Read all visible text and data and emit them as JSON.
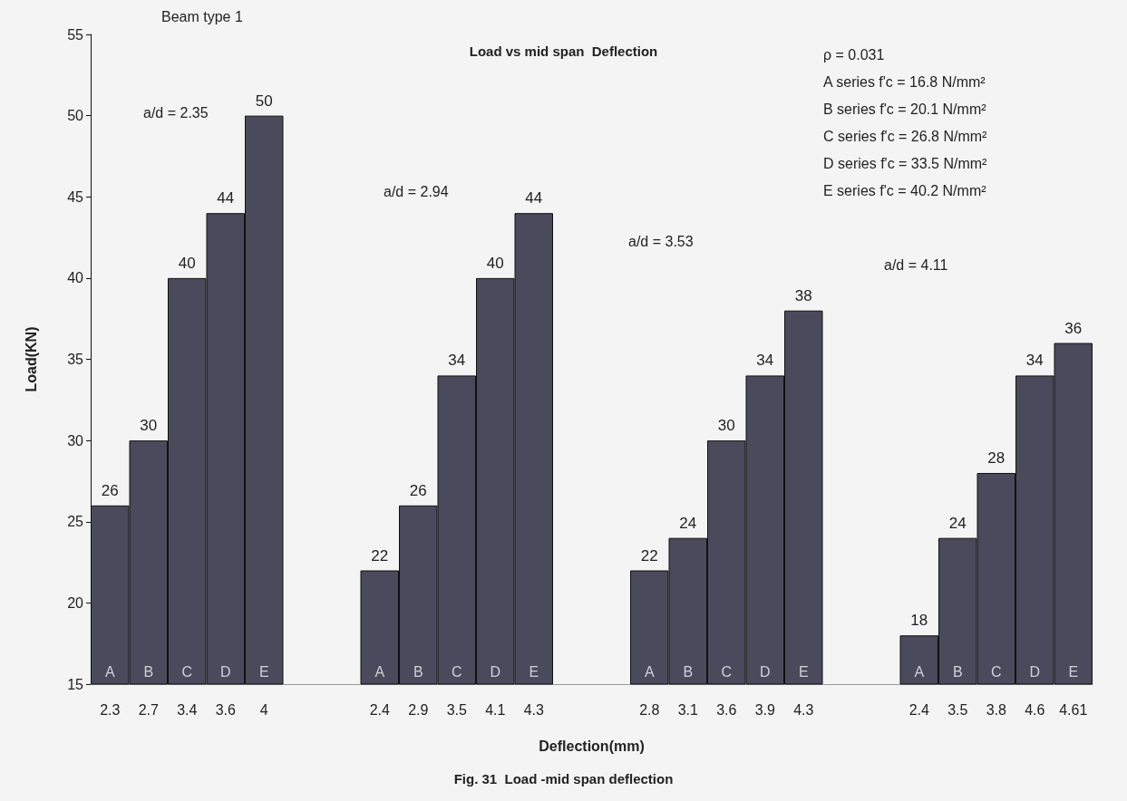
{
  "chart_data": {
    "type": "bar",
    "title": "Load vs mid span  Deflection",
    "xlabel": "Deflection(mm)",
    "ylabel": "Load(KN)",
    "categories": [
      "2.3",
      "2.7",
      "3.4",
      "3.6",
      "4",
      null,
      null,
      "2.4",
      "2.9",
      "3.5",
      "4.1",
      "4.3",
      null,
      null,
      "2.8",
      "3.1",
      "3.6",
      "3.9",
      "4.3",
      null,
      null,
      "2.4",
      "3.5",
      "3.8",
      "4.6",
      "4.61"
    ],
    "values": [
      26,
      30,
      40,
      44,
      50,
      null,
      null,
      22,
      26,
      34,
      40,
      44,
      null,
      null,
      22,
      24,
      30,
      34,
      38,
      null,
      null,
      18,
      24,
      28,
      34,
      36
    ],
    "color": "#4a4a5c",
    "data_labels": true,
    "grid": false,
    "ylim": [
      15,
      55
    ],
    "yticks": [
      15,
      20,
      25,
      30,
      35,
      40,
      45,
      50,
      55
    ],
    "annotations": [
      "Beam type 1",
      "ρ = 0.031",
      "A series f'c = 16.8 N/mm²",
      "B series f'c = 20.1 N/mm²",
      "C series f'c = 26.8 N/mm²",
      "D series f'c = 33.5 N/mm²",
      "E series f'c = 40.2 N/mm²",
      "Fig. 31  Load -mid span deflection",
      "a/d = 2.35",
      "a/d = 2.94",
      "a/d = 3.53",
      "a/d = 4.11",
      "A",
      "B",
      "C",
      "D",
      "E",
      "A",
      "B",
      "C",
      "D",
      "E",
      "A",
      "B",
      "C",
      "D",
      "E",
      "A",
      "B",
      "C",
      "D",
      "E"
    ]
  }
}
